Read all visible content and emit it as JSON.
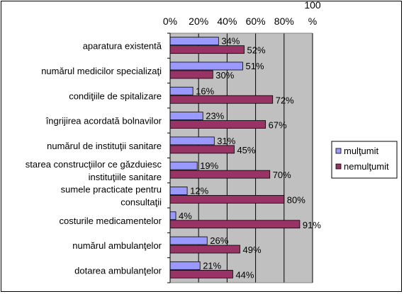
{
  "chart_data": {
    "type": "bar",
    "orientation": "horizontal",
    "xlim": [
      0,
      100
    ],
    "grid": true,
    "legend_position": "right",
    "x_ticks": [
      "0%",
      "20%",
      "40%",
      "60%",
      "80%",
      "100\n%"
    ],
    "categories": [
      "aparatura existentă",
      "numărul medicilor specializaţi",
      "condiţiile de spitalizare",
      "îngrijirea acordată bolnavilor",
      "numărul de instituţii sanitare",
      "starea construcţiilor ce găzduiesc\ninstituţiile sanitare",
      "sumele practicate pentru\nconsultaţii",
      "costurile medicamentelor",
      "numărul ambulanţelor",
      "dotarea ambulanţelor"
    ],
    "series": [
      {
        "name": "mulţumit",
        "color": "#9999FF",
        "values": [
          34,
          51,
          16,
          23,
          31,
          19,
          12,
          4,
          26,
          21
        ],
        "labels": [
          "34%",
          "51%",
          "16%",
          "23%",
          "31%",
          "19%",
          "12%",
          "4%",
          "26%",
          "21%"
        ]
      },
      {
        "name": "nemulţumit",
        "color": "#993366",
        "values": [
          52,
          30,
          72,
          67,
          45,
          70,
          80,
          91,
          49,
          44
        ],
        "labels": [
          "52%",
          "30%",
          "72%",
          "67%",
          "45%",
          "70%",
          "80%",
          "91%",
          "49%",
          "44%"
        ]
      }
    ],
    "plot_background": "#C0C0C0",
    "gridline_color": "#000000"
  }
}
